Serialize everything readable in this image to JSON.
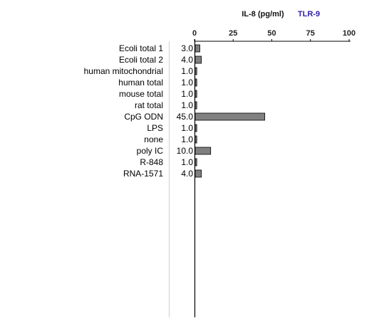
{
  "chart_data": {
    "type": "bar",
    "orientation": "horizontal",
    "title": "IL-8 (pg/ml)",
    "subtitle": "TLR-9",
    "xlim": [
      0,
      100
    ],
    "xticks": [
      "0",
      "25",
      "50",
      "75",
      "100"
    ],
    "categories": [
      "Ecoli total 1",
      "Ecoli total 2",
      "human mitochondrial",
      "human total",
      "mouse total",
      "rat total",
      "CpG ODN",
      "LPS",
      "none",
      "poly IC",
      "R-848",
      "RNA-1571"
    ],
    "values": [
      3.0,
      4.0,
      1.0,
      1.0,
      1.0,
      1.0,
      45.0,
      1.0,
      1.0,
      10.0,
      1.0,
      4.0
    ],
    "value_labels": [
      "3.0",
      "4.0",
      "1.0",
      "1.0",
      "1.0",
      "1.0",
      "45.0",
      "1.0",
      "1.0",
      "10.0",
      "1.0",
      "4.0"
    ],
    "bar_color": "#808080",
    "subtitle_color": "#2e1ea8",
    "grid": false,
    "legend": "none"
  }
}
